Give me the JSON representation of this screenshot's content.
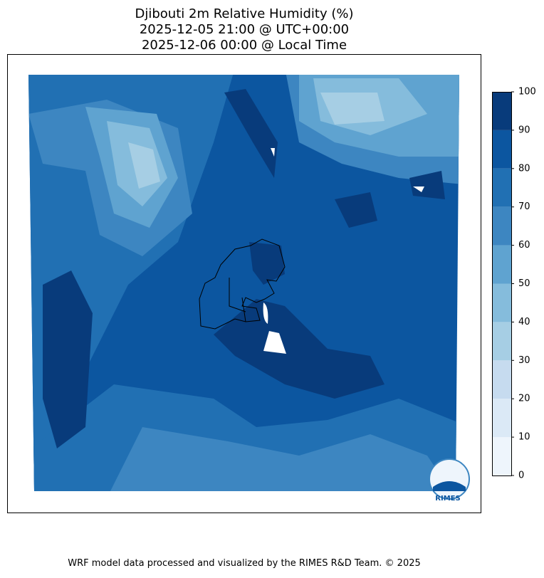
{
  "title": [
    "Djibouti 2m Relative Humidity (%)",
    "2025-12-05 21:00 @ UTC+00:00",
    "2025-12-06 00:00 @ Local Time"
  ],
  "colorbar": {
    "levels": [
      0,
      10,
      20,
      30,
      40,
      50,
      60,
      70,
      80,
      90,
      100
    ],
    "colors": [
      "#eef5fc",
      "#dbe9f6",
      "#c6dbef",
      "#a6cee4",
      "#85bcdc",
      "#5fa3d0",
      "#3d86c1",
      "#2170b3",
      "#0c56a0",
      "#083b7b"
    ]
  },
  "logo": "RIMES",
  "footer": "WRF model data processed and visualized by the RIMES R&D Team. © 2025"
}
